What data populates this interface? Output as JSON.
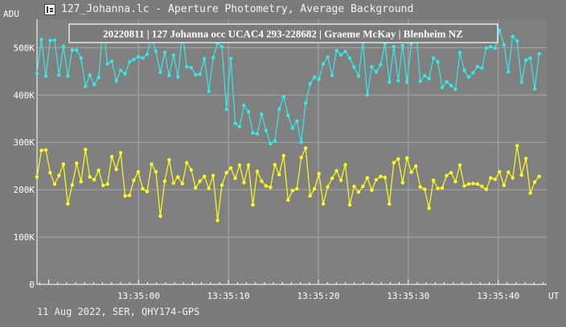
{
  "window": {
    "icon": "photometry-app-icon",
    "title": "127_Johanna.lc - Aperture Photometry, Average Background"
  },
  "caption": "11 Aug 2022, SER, QHY174-GPS",
  "chart_data": {
    "type": "line",
    "title": "20220811 | 127 Johanna occ UCAC4 293-228682 | Graeme McKay | Blenheim NZ",
    "ylabel": "ADU",
    "xlabel": "UT",
    "ylim": [
      0,
      560000
    ],
    "xlim": [
      -11.3,
      45.4
    ],
    "grid": true,
    "yticks": [
      {
        "value": 0,
        "label": "0"
      },
      {
        "value": 100000,
        "label": "100K"
      },
      {
        "value": 200000,
        "label": "200K"
      },
      {
        "value": 300000,
        "label": "300K"
      },
      {
        "value": 400000,
        "label": "400K"
      },
      {
        "value": 500000,
        "label": "500K"
      }
    ],
    "xticks": [
      {
        "value": 0,
        "label": "13:35:00"
      },
      {
        "value": 10,
        "label": "13:35:10"
      },
      {
        "value": 20,
        "label": "13:35:20"
      },
      {
        "value": 30,
        "label": "13:35:30"
      },
      {
        "value": 40,
        "label": "13:35:40"
      }
    ],
    "x_start": -11.3,
    "x_step": 0.49,
    "series": [
      {
        "color": "#33eaea",
        "values": [
          445000,
          517000,
          440000,
          515000,
          516000,
          442000,
          503000,
          440000,
          495000,
          495000,
          478000,
          418000,
          442000,
          422000,
          437000,
          545000,
          466000,
          471000,
          430000,
          452000,
          445000,
          470000,
          475000,
          481000,
          478000,
          486000,
          524000,
          493000,
          448000,
          490000,
          441000,
          484000,
          438000,
          532000,
          460000,
          458000,
          443000,
          444000,
          477000,
          408000,
          479000,
          509000,
          502000,
          370000,
          477000,
          340000,
          333000,
          378000,
          365000,
          320000,
          318000,
          360000,
          325000,
          297000,
          303000,
          370000,
          397000,
          357000,
          330000,
          345000,
          300000,
          383000,
          424000,
          438000,
          433000,
          466000,
          480000,
          441000,
          494000,
          485000,
          492000,
          478000,
          459000,
          440000,
          513000,
          400000,
          460000,
          449000,
          464000,
          509000,
          427000,
          502000,
          430000,
          505000,
          427000,
          508000,
          538000,
          429000,
          441000,
          435000,
          478000,
          470000,
          416000,
          428000,
          420000,
          412000,
          490000,
          452000,
          438000,
          447000,
          460000,
          457000,
          499000,
          502000,
          499000,
          537000,
          506000,
          449000,
          524000,
          514000,
          427000,
          474000,
          478000,
          413000,
          487000
        ]
      },
      {
        "color": "#ffff1a",
        "values": [
          227000,
          283000,
          284000,
          236000,
          212000,
          230000,
          254000,
          170000,
          210000,
          256000,
          217000,
          285000,
          227000,
          221000,
          241000,
          209000,
          212000,
          270000,
          243000,
          278000,
          187000,
          188000,
          220000,
          238000,
          202000,
          196000,
          254000,
          238000,
          144000,
          218000,
          263000,
          214000,
          227000,
          213000,
          257000,
          242000,
          204000,
          218000,
          228000,
          203000,
          230000,
          135000,
          210000,
          236000,
          246000,
          224000,
          252000,
          215000,
          252000,
          168000,
          239000,
          218000,
          208000,
          205000,
          253000,
          232000,
          272000,
          178000,
          198000,
          202000,
          268000,
          288000,
          187000,
          202000,
          234000,
          170000,
          206000,
          224000,
          240000,
          220000,
          253000,
          168000,
          207000,
          195000,
          207000,
          225000,
          199000,
          221000,
          228000,
          226000,
          170000,
          257000,
          265000,
          215000,
          267000,
          237000,
          250000,
          206000,
          201000,
          161000,
          220000,
          203000,
          204000,
          230000,
          236000,
          217000,
          252000,
          208000,
          212000,
          213000,
          212000,
          207000,
          201000,
          225000,
          222000,
          238000,
          209000,
          237000,
          225000,
          293000,
          231000,
          266000,
          193000,
          216000,
          228000
        ]
      }
    ]
  }
}
